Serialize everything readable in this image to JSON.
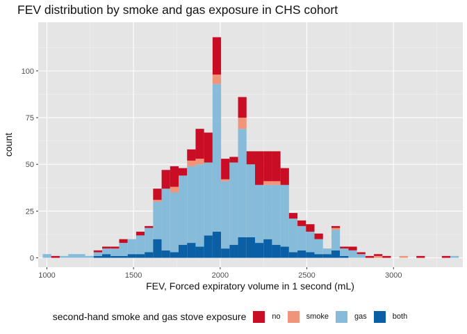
{
  "chart_data": {
    "type": "bar",
    "title": "FEV distribution by smoke and gas exposure in CHS cohort",
    "xlabel": "FEV, Forced expiratory volume in 1 second (mL)",
    "ylabel": "count",
    "xlim": [
      950,
      3400
    ],
    "ylim": [
      -5,
      126
    ],
    "xticks": [
      1000,
      1500,
      2000,
      2500,
      3000
    ],
    "yticks": [
      0,
      25,
      50,
      75,
      100
    ],
    "bin_width": 49,
    "bin_starts": [
      976,
      1025,
      1074,
      1123,
      1172,
      1221,
      1270,
      1319,
      1368,
      1417,
      1466,
      1515,
      1564,
      1613,
      1662,
      1711,
      1760,
      1809,
      1858,
      1907,
      1956,
      2005,
      2054,
      2103,
      2152,
      2201,
      2250,
      2299,
      2348,
      2397,
      2446,
      2495,
      2544,
      2593,
      2642,
      2691,
      2740,
      2789,
      2838,
      2887,
      2936,
      2985,
      3034,
      3083,
      3132,
      3181,
      3230,
      3279,
      3328
    ],
    "categories": [
      "1000",
      "1050",
      "1100",
      "1150",
      "1200",
      "1245",
      "1295",
      "1345",
      "1390",
      "1440",
      "1490",
      "1540",
      "1590",
      "1640",
      "1685",
      "1735",
      "1785",
      "1835",
      "1885",
      "1930",
      "1980",
      "2030",
      "2080",
      "2130",
      "2175",
      "2225",
      "2275",
      "2325",
      "2370",
      "2420",
      "2470",
      "2520",
      "2570",
      "2620",
      "2665",
      "2715",
      "2765",
      "2815",
      "2860",
      "2910",
      "2960",
      "3010",
      "3060",
      "3110",
      "3155",
      "3205",
      "3255",
      "3305",
      "3355"
    ],
    "series": [
      {
        "name": "both",
        "color": "#0b5fa5",
        "values": [
          0,
          0,
          0,
          0,
          0,
          0,
          1,
          2,
          1,
          1,
          2,
          2,
          3,
          10,
          4,
          3,
          7,
          8,
          6,
          12,
          14,
          5,
          7,
          11,
          11,
          8,
          10,
          7,
          6,
          3,
          4,
          3,
          2,
          2,
          4,
          1,
          0,
          0,
          0,
          0,
          0,
          0,
          0,
          0,
          0,
          0,
          0,
          0,
          0
        ]
      },
      {
        "name": "gas",
        "color": "#86bcd9",
        "values": [
          2,
          0,
          1,
          2,
          2,
          1,
          2,
          3,
          4,
          7,
          8,
          10,
          13,
          20,
          33,
          32,
          37,
          41,
          44,
          39,
          79,
          36,
          44,
          58,
          39,
          31,
          29,
          32,
          33,
          18,
          13,
          11,
          8,
          3,
          11,
          4,
          4,
          2,
          0,
          0,
          0,
          0,
          0,
          0,
          0,
          0,
          0,
          0,
          1
        ]
      },
      {
        "name": "smoke",
        "color": "#f1957a",
        "values": [
          0,
          0,
          0,
          0,
          0,
          0,
          0,
          0,
          0,
          0,
          0,
          0,
          0,
          1,
          0,
          3,
          0,
          3,
          3,
          0,
          5,
          1,
          0,
          6,
          0,
          0,
          2,
          2,
          0,
          0,
          0,
          0,
          0,
          0,
          1,
          0,
          0,
          0,
          0,
          1,
          0,
          0,
          1,
          0,
          0,
          0,
          0,
          0,
          0
        ]
      },
      {
        "name": "no",
        "color": "#c80d24",
        "values": [
          0,
          1,
          0,
          0,
          0,
          0,
          1,
          1,
          1,
          2,
          0,
          2,
          1,
          6,
          10,
          11,
          4,
          6,
          16,
          16,
          20,
          11,
          3,
          11,
          7,
          18,
          16,
          16,
          9,
          3,
          3,
          4,
          3,
          0,
          1,
          1,
          2,
          1,
          1,
          1,
          1,
          0,
          0,
          0,
          1,
          0,
          0,
          1,
          0
        ]
      }
    ],
    "legend": {
      "title": "second-hand smoke and gas stove exposure",
      "position": "bottom",
      "order": [
        "no",
        "smoke",
        "gas",
        "both"
      ]
    },
    "grid": true,
    "background": "#e5e5e5"
  }
}
